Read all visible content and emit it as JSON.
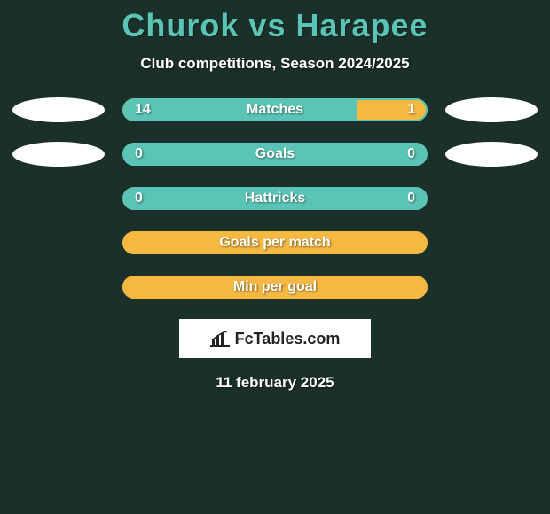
{
  "title": "Churok vs Harapee",
  "subtitle": "Club competitions, Season 2024/2025",
  "colors": {
    "background": "#1a3028",
    "teal": "#5ac5b6",
    "orange": "#f5b942",
    "white": "#ffffff"
  },
  "rows": [
    {
      "label": "Matches",
      "left_value": "14",
      "right_value": "1",
      "split_percent": 77,
      "style": "split",
      "show_left_ellipse": true,
      "show_right_ellipse": true
    },
    {
      "label": "Goals",
      "left_value": "0",
      "right_value": "0",
      "style": "green",
      "show_left_ellipse": true,
      "show_right_ellipse": true
    },
    {
      "label": "Hattricks",
      "left_value": "0",
      "right_value": "0",
      "style": "green",
      "show_left_ellipse": false,
      "show_right_ellipse": false
    },
    {
      "label": "Goals per match",
      "left_value": "",
      "right_value": "",
      "style": "orange",
      "show_left_ellipse": false,
      "show_right_ellipse": false
    },
    {
      "label": "Min per goal",
      "left_value": "",
      "right_value": "",
      "style": "orange",
      "show_left_ellipse": false,
      "show_right_ellipse": false
    }
  ],
  "logo": {
    "text": "FcTables.com"
  },
  "date": "11 february 2025"
}
